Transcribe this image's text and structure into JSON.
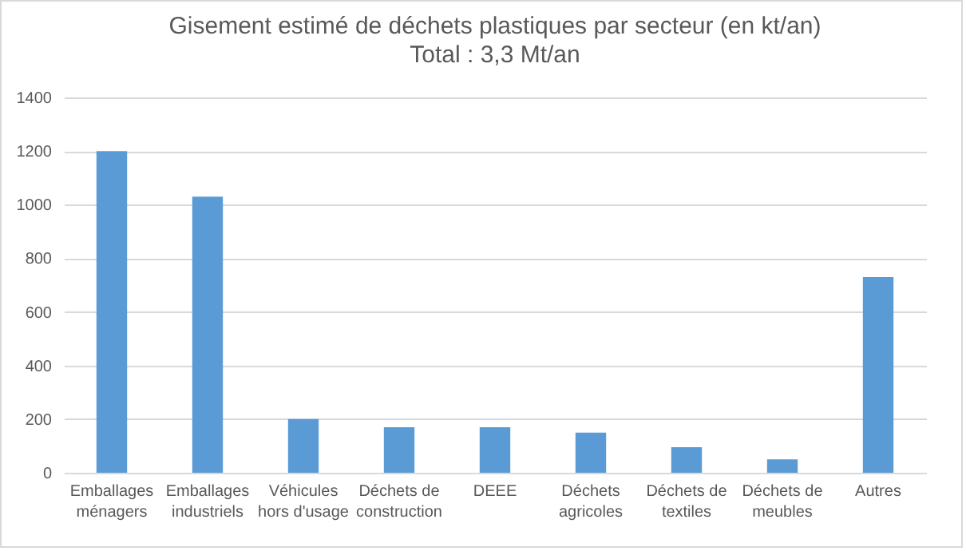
{
  "chart_data": {
    "type": "bar",
    "title": "Gisement estimé de déchets plastiques par secteur (en kt/an)",
    "subtitle": "Total : 3,3 Mt/an",
    "categories": [
      "Emballages ménagers",
      "Emballages industriels",
      "Véhicules hors d'usage",
      "Déchets de construction",
      "DEEE",
      "Déchets agricoles",
      "Déchets de textiles",
      "Déchets de meubles",
      "Autres"
    ],
    "values": [
      1200,
      1030,
      200,
      170,
      170,
      150,
      95,
      50,
      730
    ],
    "color": "#5b9bd5",
    "ylim": [
      0,
      1400
    ],
    "yticks": [
      0,
      200,
      400,
      600,
      800,
      1000,
      1200,
      1400
    ],
    "grid": "y"
  }
}
